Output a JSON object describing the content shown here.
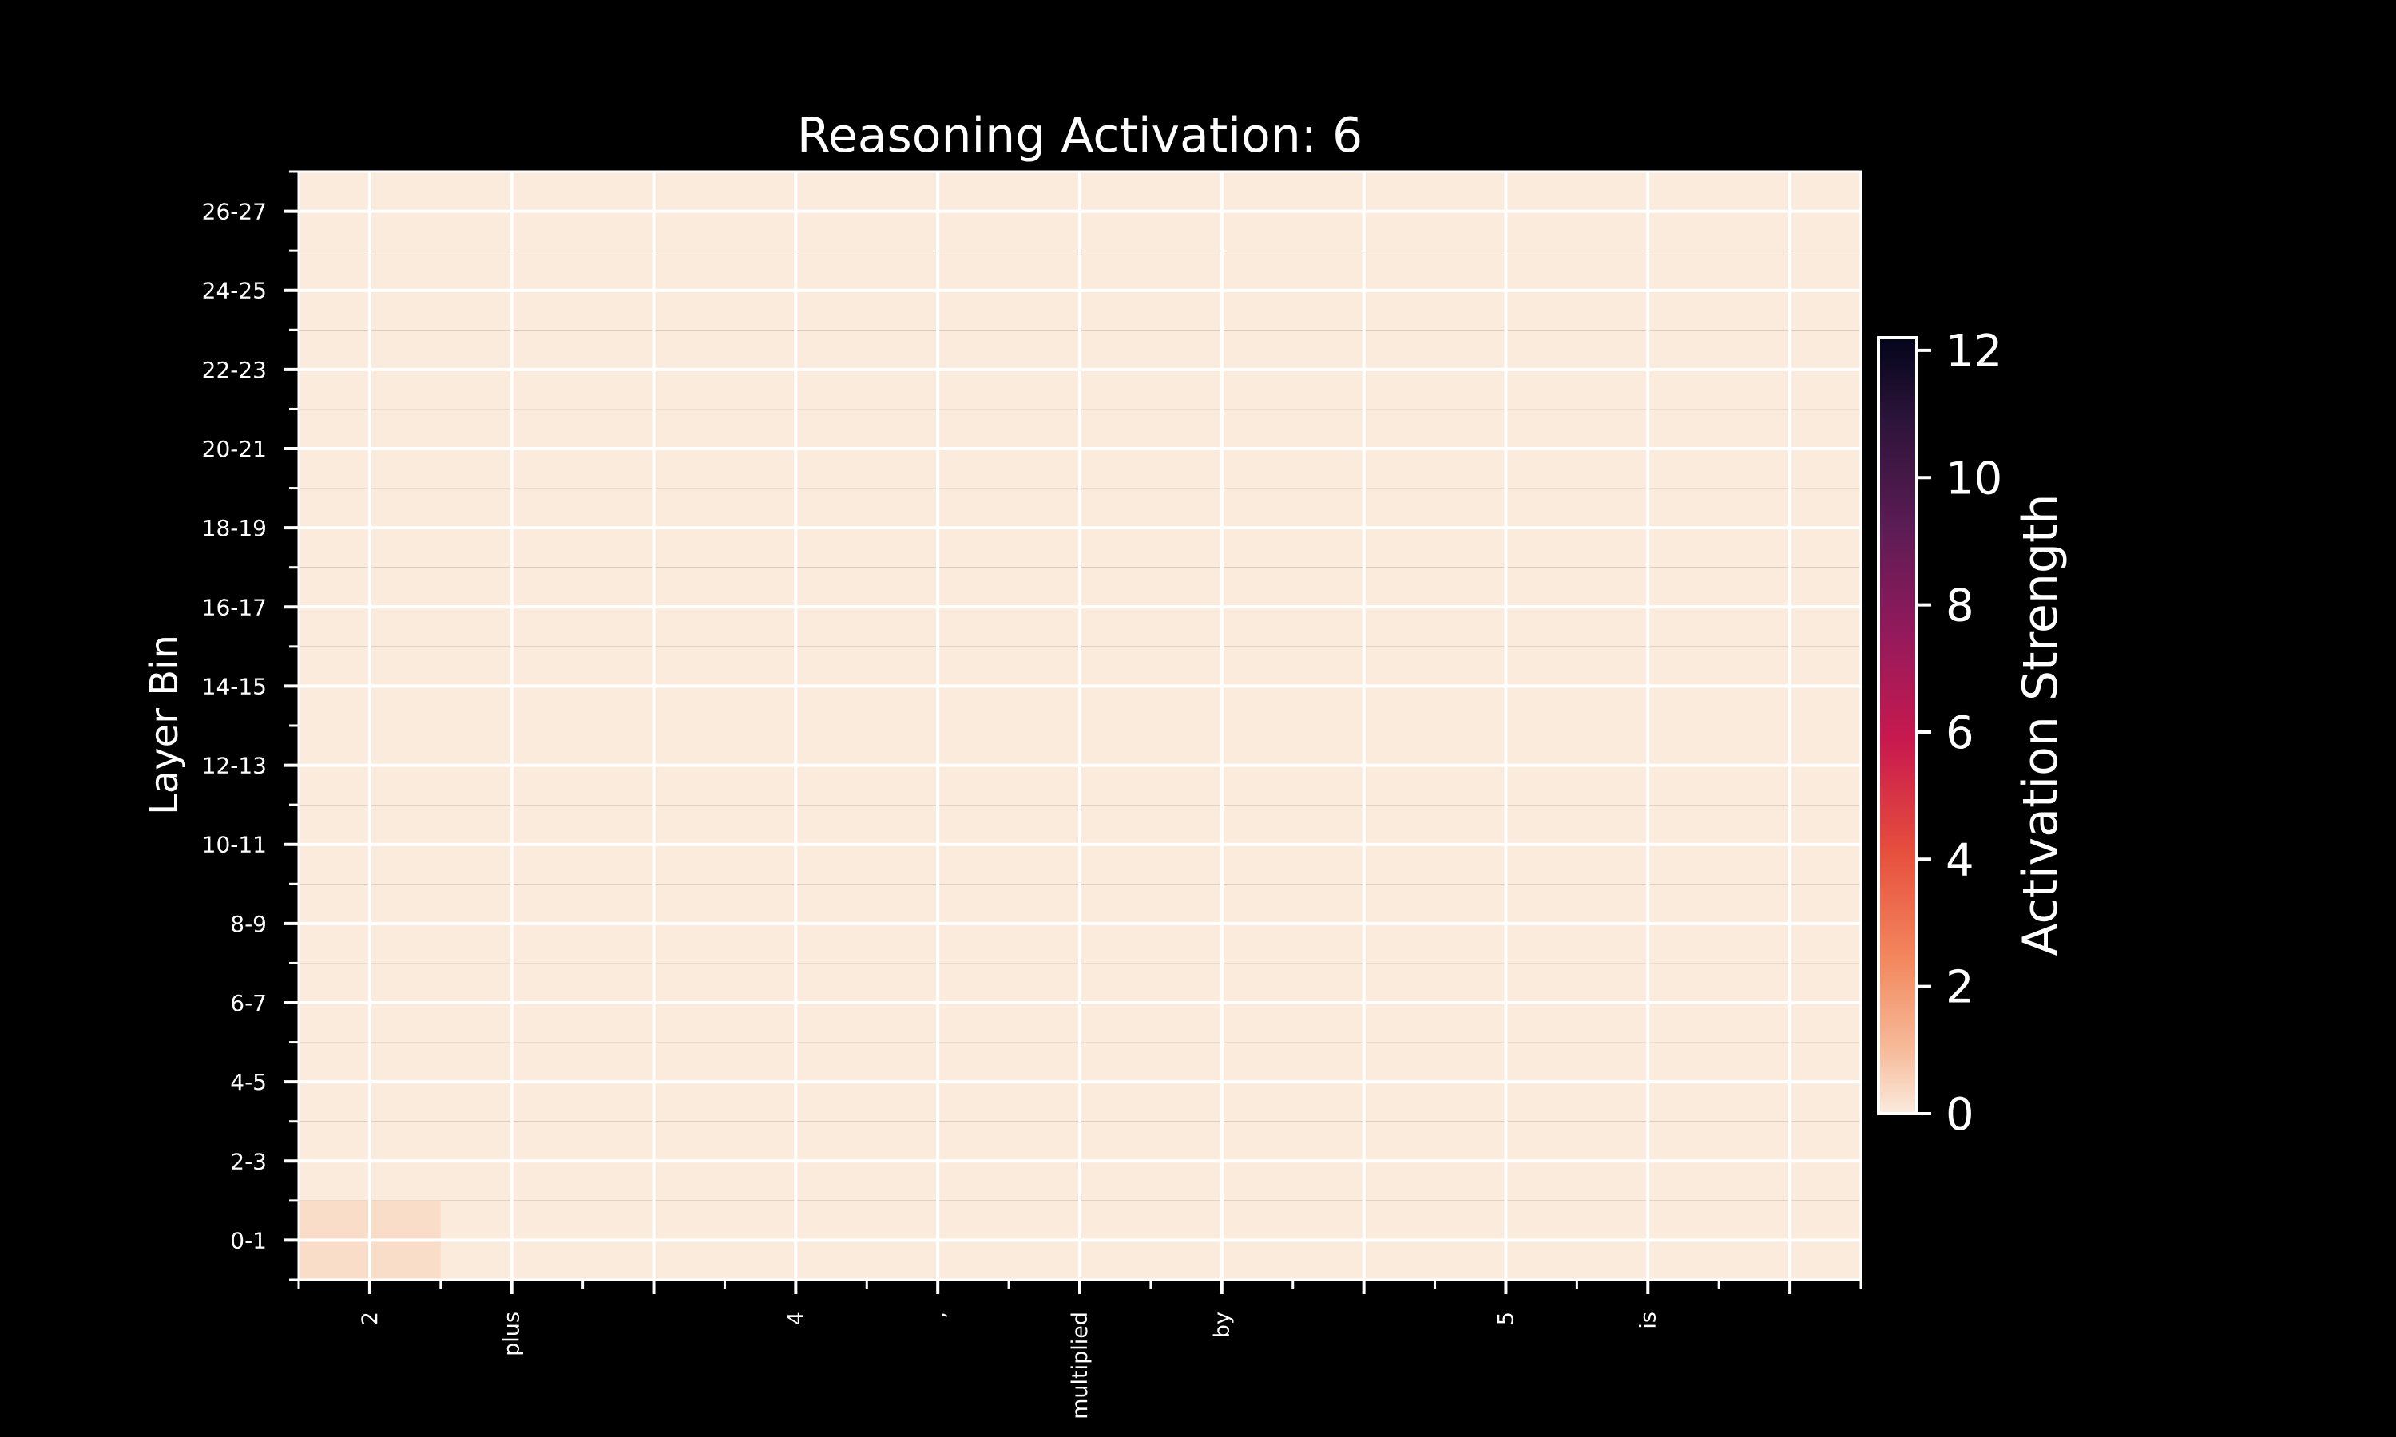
{
  "chart_data": {
    "type": "heatmap",
    "title": "Reasoning Activation: 6",
    "xlabel": "",
    "ylabel": "Layer Bin",
    "x_token_labels": [
      "2",
      "plus",
      "",
      "4",
      ",",
      "multiplied",
      "by",
      "",
      "5",
      "is",
      ""
    ],
    "y_tick_labels": [
      "0-1",
      "2-3",
      "4-5",
      "6-7",
      "8-9",
      "10-11",
      "12-13",
      "14-15",
      "16-17",
      "18-19",
      "20-21",
      "22-23",
      "24-25",
      "26-27"
    ],
    "colorbar": {
      "label": "Activation Strength",
      "range": [
        0,
        12.2
      ],
      "ticks": [
        0,
        2,
        4,
        6,
        8,
        10,
        12
      ],
      "colormap": "rocket_r"
    },
    "cells": [
      {
        "row": 0,
        "col": 0,
        "value": 0.3
      }
    ],
    "base_value": 0,
    "grid": true
  },
  "colors": {
    "background": "#000000",
    "text": "#ffffff",
    "grid": "#ffffff",
    "base_cell": "#faebdd"
  }
}
